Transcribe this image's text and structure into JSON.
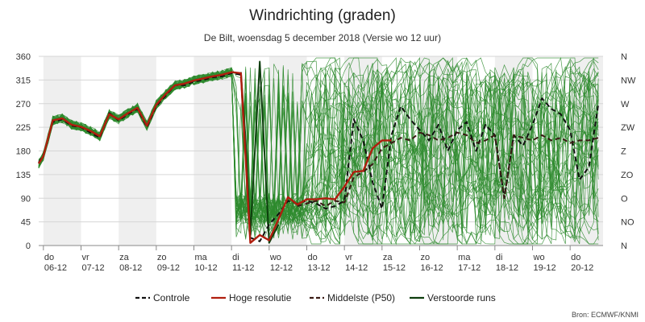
{
  "chart_data": {
    "type": "line",
    "title": "Windrichting (graden)",
    "subtitle": "De Bilt, woensdag 5 december 2018 (Versie wo 12 uur)",
    "credit": "Bron: ECMWF/KNMI",
    "ylim": [
      0,
      360
    ],
    "yticks": [
      0,
      45,
      90,
      135,
      180,
      225,
      270,
      315,
      360
    ],
    "right_ticks": [
      {
        "value": 0,
        "label": "N"
      },
      {
        "value": 45,
        "label": "NO"
      },
      {
        "value": 90,
        "label": "O"
      },
      {
        "value": 135,
        "label": "ZO"
      },
      {
        "value": 180,
        "label": "Z"
      },
      {
        "value": 225,
        "label": "ZW"
      },
      {
        "value": 270,
        "label": "W"
      },
      {
        "value": 315,
        "label": "NW"
      },
      {
        "value": 360,
        "label": "N"
      }
    ],
    "xlim": [
      5.875,
      20.875
    ],
    "days": [
      {
        "day": 6,
        "dow": "do",
        "date": "06-12"
      },
      {
        "day": 7,
        "dow": "vr",
        "date": "07-12"
      },
      {
        "day": 8,
        "dow": "za",
        "date": "08-12"
      },
      {
        "day": 9,
        "dow": "zo",
        "date": "09-12"
      },
      {
        "day": 10,
        "dow": "ma",
        "date": "10-12"
      },
      {
        "day": 11,
        "dow": "di",
        "date": "11-12"
      },
      {
        "day": 12,
        "dow": "wo",
        "date": "12-12"
      },
      {
        "day": 13,
        "dow": "do",
        "date": "13-12"
      },
      {
        "day": 14,
        "dow": "vr",
        "date": "14-12"
      },
      {
        "day": 15,
        "dow": "za",
        "date": "15-12"
      },
      {
        "day": 16,
        "dow": "zo",
        "date": "16-12"
      },
      {
        "day": 17,
        "dow": "ma",
        "date": "17-12"
      },
      {
        "day": 18,
        "dow": "di",
        "date": "18-12"
      },
      {
        "day": 19,
        "dow": "wo",
        "date": "19-12"
      },
      {
        "day": 20,
        "dow": "do",
        "date": "20-12"
      }
    ],
    "grid": true,
    "legend_position": "bottom",
    "series": [
      {
        "name": "Controle",
        "color": "#111111",
        "style": "dashed",
        "x": [
          5.875,
          6.0,
          6.25,
          6.5,
          6.75,
          7.0,
          7.25,
          7.5,
          7.75,
          8.0,
          8.25,
          8.5,
          8.75,
          9.0,
          9.25,
          9.5,
          9.75,
          10.0,
          10.25,
          10.5,
          10.75,
          11.0,
          11.25,
          11.5,
          11.75,
          12.0,
          12.25,
          12.5,
          12.75,
          13.0,
          13.25,
          13.5,
          13.75,
          14.0,
          14.25,
          14.5,
          14.75,
          15.0,
          15.25,
          15.5,
          15.75,
          16.0,
          16.25,
          16.5,
          16.75,
          17.0,
          17.25,
          17.5,
          17.75,
          18.0,
          18.25,
          18.5,
          18.75,
          19.0,
          19.25,
          19.5,
          19.75,
          20.0,
          20.25,
          20.5,
          20.75
        ],
        "y": [
          158,
          172,
          235,
          240,
          228,
          225,
          215,
          205,
          252,
          238,
          250,
          260,
          225,
          265,
          285,
          305,
          305,
          312,
          315,
          320,
          322,
          328,
          325,
          15,
          8,
          40,
          60,
          85,
          80,
          85,
          80,
          70,
          75,
          85,
          240,
          200,
          120,
          70,
          210,
          265,
          240,
          220,
          200,
          230,
          180,
          220,
          235,
          180,
          230,
          210,
          90,
          210,
          190,
          230,
          280,
          260,
          250,
          220,
          125,
          150,
          270
        ]
      },
      {
        "name": "Hoge resolutie",
        "color": "#b01e0e",
        "style": "solid",
        "x": [
          5.875,
          6.0,
          6.25,
          6.5,
          6.75,
          7.0,
          7.25,
          7.5,
          7.75,
          8.0,
          8.25,
          8.5,
          8.75,
          9.0,
          9.25,
          9.5,
          9.75,
          10.0,
          10.25,
          10.5,
          10.75,
          11.0,
          11.25,
          11.5,
          11.75,
          12.0,
          12.25,
          12.5,
          12.75,
          13.0,
          13.25,
          13.5,
          13.75,
          14.0,
          14.25,
          14.5,
          14.75,
          15.0,
          15.25
        ],
        "y": [
          156,
          170,
          238,
          242,
          230,
          226,
          218,
          208,
          250,
          240,
          252,
          262,
          228,
          268,
          288,
          305,
          308,
          314,
          318,
          322,
          325,
          330,
          328,
          5,
          20,
          10,
          50,
          92,
          78,
          88,
          88,
          90,
          88,
          112,
          140,
          142,
          185,
          200,
          200
        ]
      },
      {
        "name": "Middelste (P50)",
        "color": "#3a1a14",
        "style": "dashed",
        "x": [
          12.75,
          13.0,
          13.25,
          13.5,
          13.75,
          14.0,
          14.25,
          14.5,
          14.75,
          15.0,
          15.25,
          15.5,
          15.75,
          16.0,
          16.25,
          16.5,
          16.75,
          17.0,
          17.25,
          17.5,
          17.75,
          18.0,
          18.25,
          18.5,
          18.75,
          19.0,
          19.25,
          19.5,
          19.75,
          20.0,
          20.25,
          20.5,
          20.75
        ],
        "y": [
          75,
          80,
          85,
          75,
          85,
          82,
          130,
          140,
          155,
          185,
          195,
          205,
          200,
          215,
          210,
          200,
          205,
          215,
          210,
          195,
          200,
          210,
          90,
          210,
          205,
          200,
          210,
          200,
          205,
          195,
          200,
          200,
          205
        ]
      },
      {
        "name": "Verstoorde runs",
        "color": "#0d3d0d",
        "style": "solid",
        "x": [
          11.25,
          11.375,
          11.5,
          11.75,
          12.0,
          12.25
        ],
        "y": [
          330,
          200,
          20,
          350,
          5,
          40
        ]
      }
    ]
  }
}
